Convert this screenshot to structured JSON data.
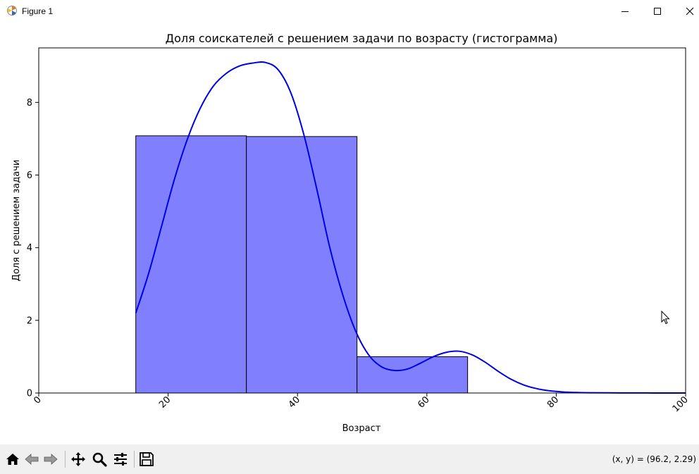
{
  "window": {
    "title": "Figure 1",
    "app_icon": "matplotlib-logo-icon",
    "controls": [
      "minimize-icon",
      "maximize-icon",
      "close-icon"
    ]
  },
  "toolbar": {
    "buttons": [
      "home-icon",
      "back-arrow-icon",
      "forward-arrow-icon",
      "pan-icon",
      "zoom-icon",
      "configure-subplots-icon",
      "save-icon"
    ],
    "coords_text": "(x, y) = (96.2, 2.29)"
  },
  "chart_data": {
    "type": "bar",
    "title": "Доля соискателей с решением задачи по возрасту (гистограмма)",
    "xlabel": "Возраст",
    "ylabel": "Доля с решением задачи",
    "xlim": [
      0,
      100
    ],
    "ylim": [
      0,
      9.5
    ],
    "xticks": [
      0,
      20,
      40,
      60,
      80,
      100
    ],
    "xtick_labels": [
      "0",
      "20",
      "40",
      "60",
      "80",
      "100"
    ],
    "yticks": [
      0,
      2,
      4,
      6,
      8
    ],
    "ytick_labels": [
      "0",
      "2",
      "4",
      "6",
      "8"
    ],
    "bins": [
      {
        "x0": 15,
        "x1": 32.1,
        "value": 7.08
      },
      {
        "x0": 32.1,
        "x1": 49.2,
        "value": 7.06
      },
      {
        "x0": 49.2,
        "x1": 66.3,
        "value": 1.0
      }
    ],
    "bar_color": "#8080ff",
    "bar_edge_color": "#000000",
    "kde": {
      "color": "#0000e6",
      "x": [
        15,
        17,
        19,
        21,
        23,
        25,
        27,
        29,
        31,
        33,
        35,
        37,
        39,
        41,
        43,
        45,
        47,
        49,
        51,
        53,
        55,
        57,
        59,
        61,
        63,
        65,
        67,
        69,
        71,
        73,
        75,
        77,
        79,
        81,
        83,
        85,
        90,
        95,
        100
      ],
      "y": [
        2.2,
        3.3,
        4.6,
        5.9,
        7.0,
        7.85,
        8.45,
        8.8,
        9.0,
        9.08,
        9.1,
        8.9,
        8.25,
        7.1,
        5.6,
        4.0,
        2.7,
        1.7,
        1.05,
        0.72,
        0.62,
        0.66,
        0.82,
        1.0,
        1.12,
        1.15,
        1.05,
        0.85,
        0.6,
        0.38,
        0.22,
        0.12,
        0.06,
        0.03,
        0.015,
        0.008,
        0.003,
        0.001,
        0.0
      ]
    },
    "grid": false,
    "legend": "none"
  }
}
